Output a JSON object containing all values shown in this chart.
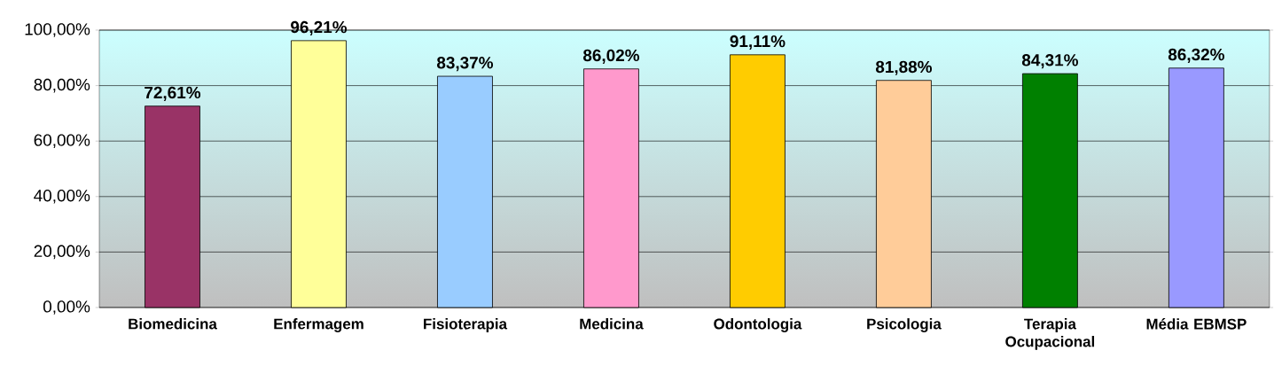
{
  "chart_data": {
    "type": "bar",
    "categories": [
      "Biomedicina",
      "Enfermagem",
      "Fisioterapia",
      "Medicina",
      "Odontologia",
      "Psicologia",
      "Terapia Ocupacional",
      "Média EBMSP"
    ],
    "values": [
      72.61,
      96.21,
      83.37,
      86.02,
      91.11,
      81.88,
      84.31,
      86.32
    ],
    "colors": [
      "#993366",
      "#ffff99",
      "#99ccff",
      "#ff99cc",
      "#ffcc00",
      "#ffcc99",
      "#008000",
      "#9999ff"
    ],
    "value_labels": [
      "72,61%",
      "96,21%",
      "83,37%",
      "86,02%",
      "91,11%",
      "81,88%",
      "84,31%",
      "86,32%"
    ],
    "ylim": [
      0,
      100
    ],
    "yticks": [
      {
        "value": 0,
        "label": "0,00%"
      },
      {
        "value": 20,
        "label": "20,00%"
      },
      {
        "value": 40,
        "label": "40,00%"
      },
      {
        "value": 60,
        "label": "60,00%"
      },
      {
        "value": 80,
        "label": "80,00%"
      },
      {
        "value": 100,
        "label": "100,00%"
      }
    ],
    "grid": "y"
  }
}
